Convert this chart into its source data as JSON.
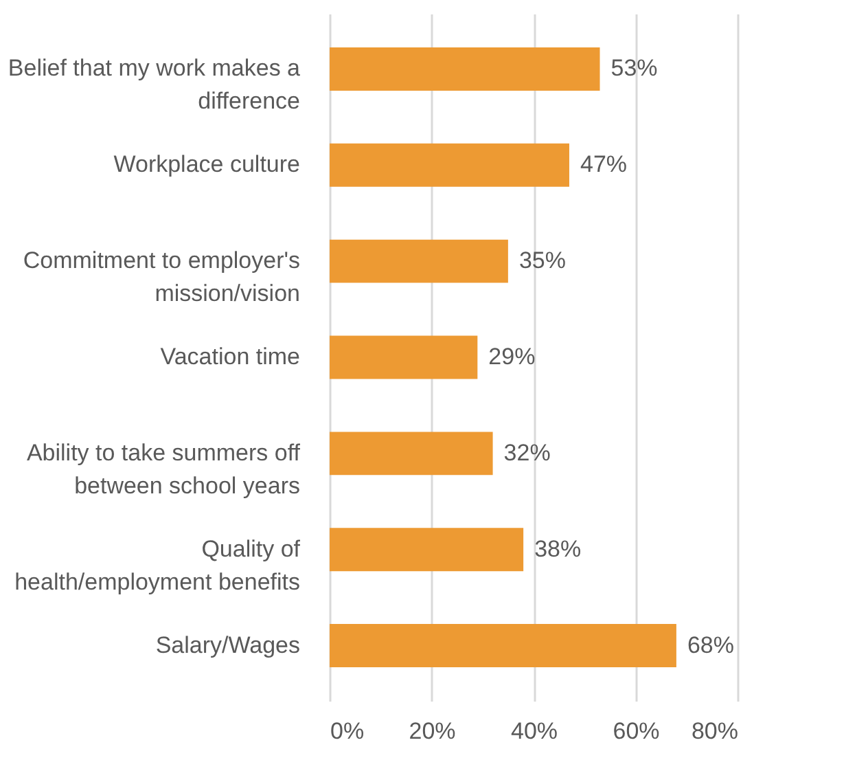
{
  "chart_data": {
    "type": "bar",
    "orientation": "horizontal",
    "categories": [
      "Belief that my work makes a difference",
      "Workplace culture",
      "Commitment to employer's mission/vision",
      "Vacation time",
      "Ability to take summers off between school years",
      "Quality of health/employment benefits",
      "Salary/Wages"
    ],
    "values": [
      53,
      47,
      35,
      29,
      32,
      38,
      68
    ],
    "value_labels": [
      "53%",
      "47%",
      "35%",
      "29%",
      "32%",
      "38%",
      "68%"
    ],
    "color": "#ed9a33",
    "xlim": [
      0,
      80
    ],
    "xticks": [
      {
        "value": 0,
        "label": "0%"
      },
      {
        "value": 20,
        "label": "20%"
      },
      {
        "value": 40,
        "label": "40%"
      },
      {
        "value": 60,
        "label": "60%"
      },
      {
        "value": 80,
        "label": "80%"
      }
    ],
    "grid": "x"
  }
}
